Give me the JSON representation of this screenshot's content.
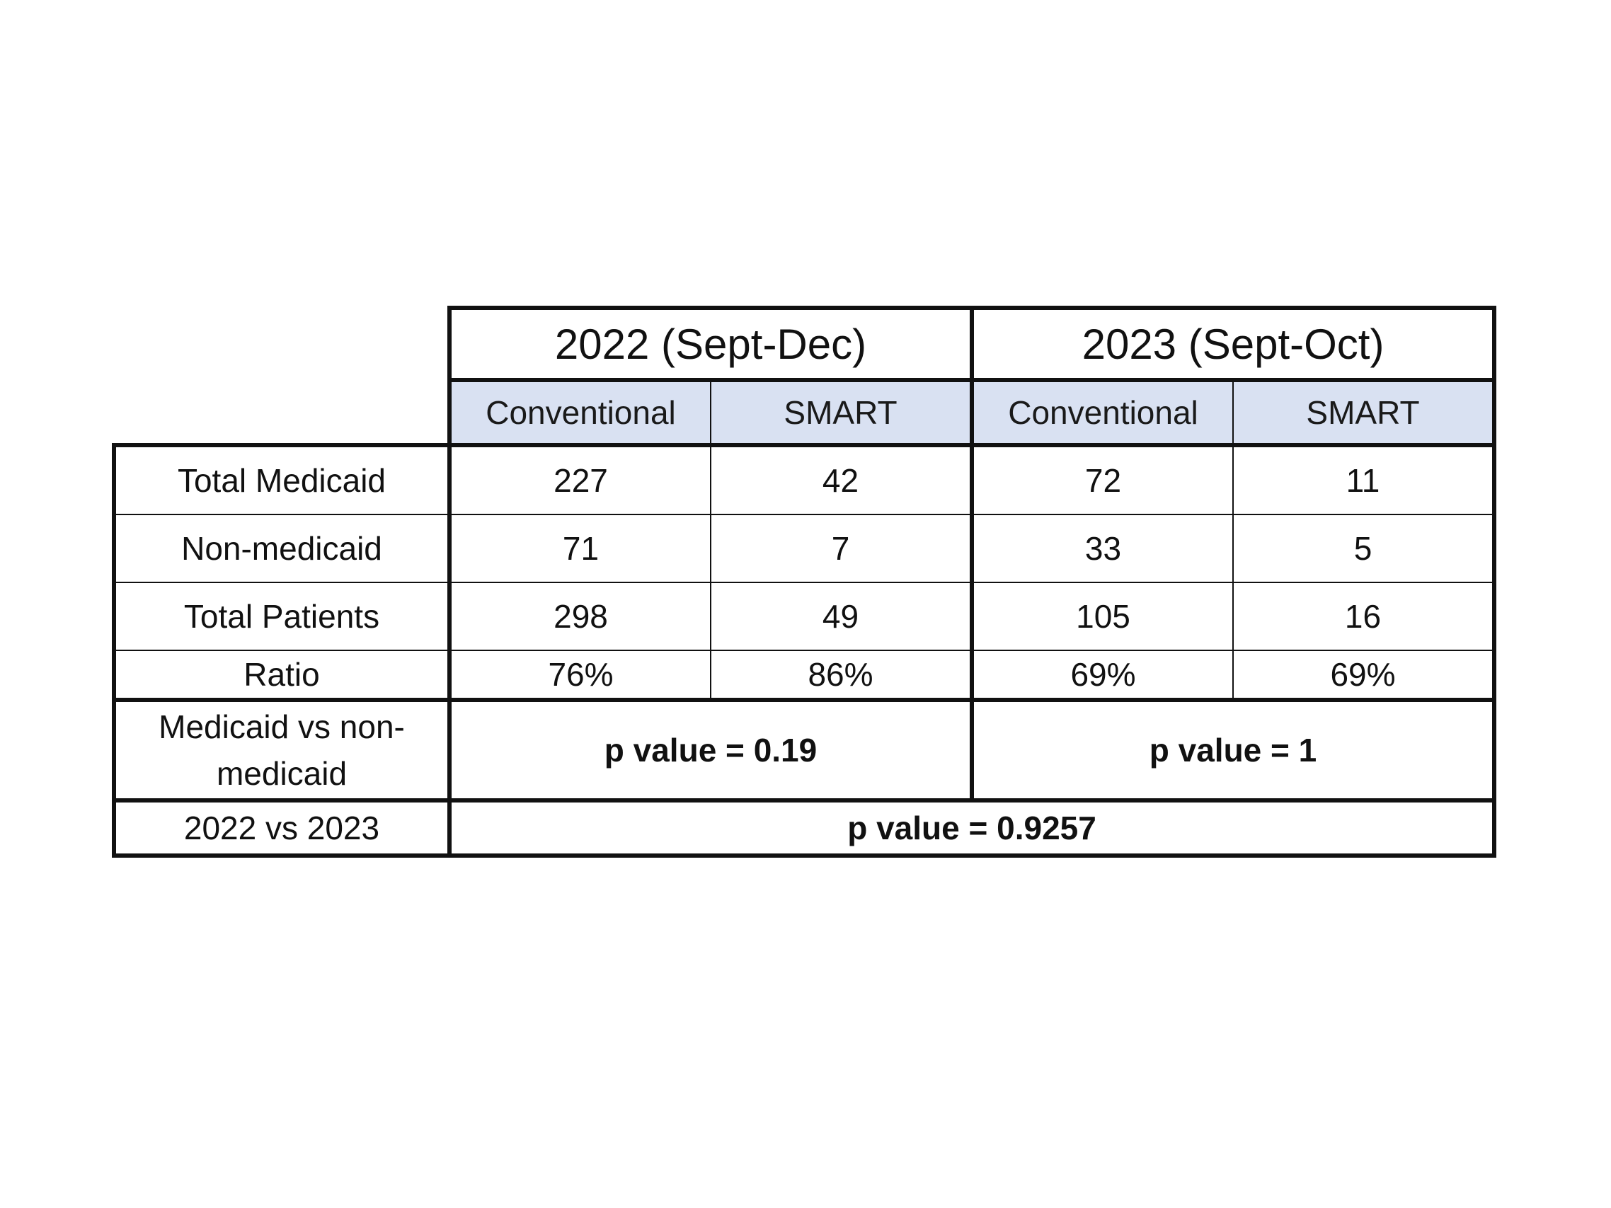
{
  "table": {
    "period_headers": [
      "2022 (Sept-Dec)",
      "2023 (Sept-Oct)"
    ],
    "sub_headers": [
      "Conventional",
      "SMART",
      "Conventional",
      "SMART"
    ],
    "rows": [
      {
        "label": "Total Medicaid",
        "values": [
          "227",
          "42",
          "72",
          "11"
        ]
      },
      {
        "label": "Non-medicaid",
        "values": [
          "71",
          "7",
          "33",
          "5"
        ]
      },
      {
        "label": "Total Patients",
        "values": [
          "298",
          "49",
          "105",
          "16"
        ]
      },
      {
        "label": "Ratio",
        "values": [
          "76%",
          "86%",
          "69%",
          "69%"
        ]
      }
    ],
    "medicaid_comparison": {
      "label": "Medicaid vs non-medicaid",
      "p_2022": "p value = 0.19",
      "p_2023": "p value = 1"
    },
    "year_comparison": {
      "label": "2022 vs 2023",
      "p_value": "p value = 0.9257"
    },
    "colors": {
      "subheader_fill": "#d9e1f2",
      "border": "#111111"
    }
  }
}
